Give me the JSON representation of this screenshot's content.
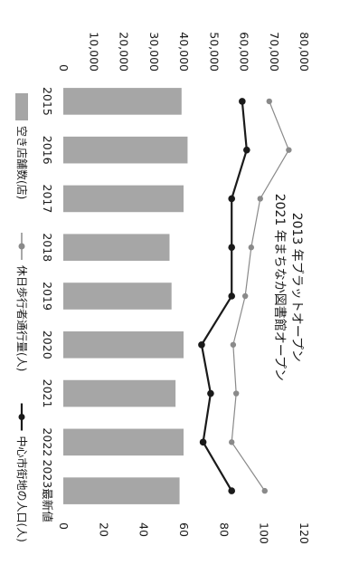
{
  "chart_data": {
    "type": "bar",
    "categories": [
      "2015",
      "2016",
      "2017",
      "2018",
      "2019",
      "2020",
      "2021",
      "2022",
      "2023最新値"
    ],
    "series": [
      {
        "name": "空き店舗数(店)",
        "kind": "bar",
        "axis": "right",
        "values": [
          59,
          62,
          60,
          53,
          54,
          60,
          56,
          60,
          58
        ],
        "color": "#a6a6a6"
      },
      {
        "name": "休日歩行者通行量(人)",
        "kind": "line",
        "axis": "left",
        "values": [
          68500,
          75000,
          65500,
          62500,
          60500,
          56500,
          57500,
          56000,
          67000
        ],
        "color": "#8a8a8a"
      },
      {
        "name": "中心市街地の人口(人)",
        "kind": "line",
        "axis": "left",
        "values": [
          59500,
          61000,
          56000,
          56000,
          56000,
          46000,
          49000,
          46500,
          56000
        ],
        "color": "#1a1a1a"
      }
    ],
    "left_axis": {
      "ticks": [
        "80,000",
        "70,000",
        "60,000",
        "50,000",
        "40,000",
        "30,000",
        "20,000",
        "10,000",
        "0"
      ],
      "range": [
        0,
        80000
      ]
    },
    "right_axis": {
      "ticks": [
        "120",
        "100",
        "80",
        "60",
        "40",
        "20",
        "0"
      ],
      "range": [
        0,
        120
      ]
    },
    "annotations": [
      "2013 年ブラットオープン",
      "2021 年まちなか図書館オープン"
    ],
    "legend_position": "bottom",
    "grid": false
  }
}
